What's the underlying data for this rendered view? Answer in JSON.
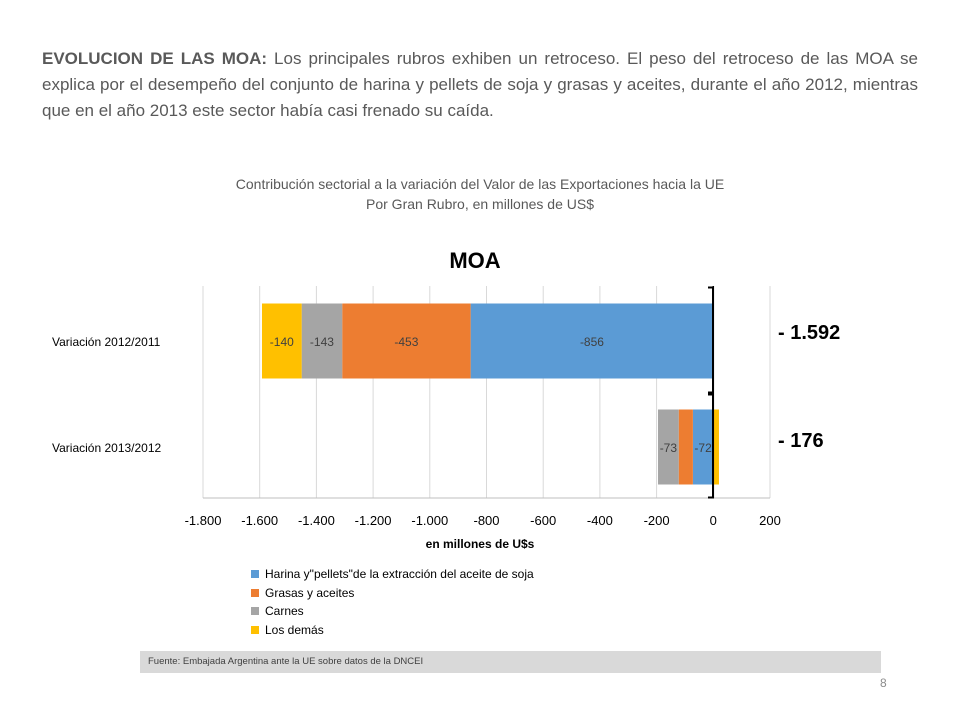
{
  "intro": {
    "lead": "EVOLUCION DE LAS MOA:",
    "body": " Los principales rubros exhiben un retroceso. El peso del retroceso de las MOA se explica por el desempeño del conjunto de harina y pellets de soja y grasas y aceites, durante el año 2012, mientras que en el año 2013 este sector había casi frenado su caída."
  },
  "caption": {
    "line1": "Contribución sectorial a la variación del Valor de las Exportaciones hacia la UE",
    "line2": "Por Gran Rubro, en millones de US$"
  },
  "chart_data": {
    "type": "bar",
    "orientation": "horizontal",
    "stacked": true,
    "title": "MOA",
    "xlabel": "en millones de U$s",
    "ylabel": "",
    "xlim": [
      -1800,
      200
    ],
    "xticks": [
      -1800,
      -1600,
      -1400,
      -1200,
      -1000,
      -800,
      -600,
      -400,
      -200,
      0,
      200
    ],
    "xtick_labels": [
      "-1.800",
      "-1.600",
      "-1.400",
      "-1.200",
      "-1.000",
      "-800",
      "-600",
      "-400",
      "-200",
      "0",
      "200"
    ],
    "grid": true,
    "legend_position": "bottom",
    "categories": [
      "Variación 2012/2011",
      "Variación 2013/2012"
    ],
    "series": [
      {
        "name": "Harina y\"pellets\"de la extracción del aceite de soja",
        "color": "#5b9bd5",
        "values": [
          -856,
          -72
        ],
        "labels": [
          "-856",
          "-72"
        ]
      },
      {
        "name": "Grasas y aceites",
        "color": "#ed7d31",
        "values": [
          -453,
          -50
        ],
        "labels": [
          "-453",
          ""
        ]
      },
      {
        "name": "Carnes",
        "color": "#a5a5a5",
        "values": [
          -143,
          -73
        ],
        "labels": [
          "-143",
          "-73"
        ]
      },
      {
        "name": "Los demás",
        "color": "#ffc000",
        "values": [
          -140,
          20
        ],
        "labels": [
          "-140",
          ""
        ]
      }
    ],
    "totals": [
      "- 1.592",
      "- 176"
    ]
  },
  "source": "Fuente: Embajada  Argentina ante la UE sobre datos de la DNCEI",
  "page_number": "8"
}
